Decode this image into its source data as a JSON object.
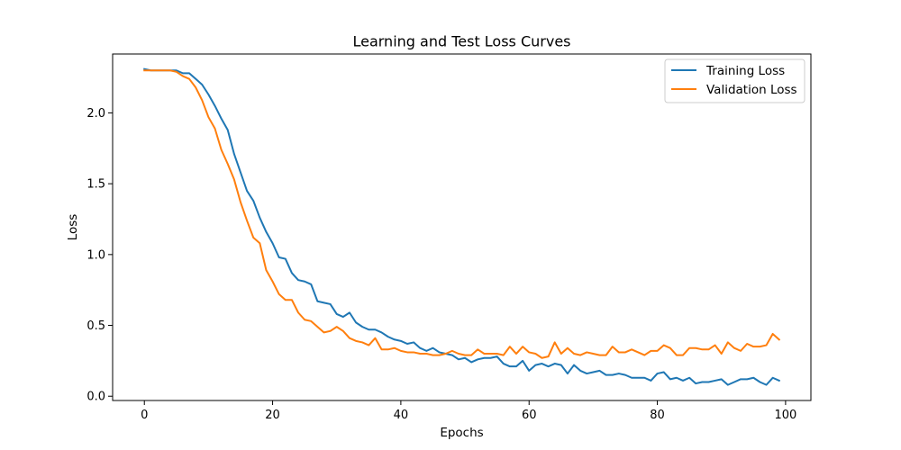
{
  "chart_data": {
    "type": "line",
    "title": "Learning and Test Loss Curves",
    "xlabel": "Epochs",
    "ylabel": "Loss",
    "xlim": [
      -4.95,
      103.95
    ],
    "ylim": [
      -0.0303,
      2.4159
    ],
    "xticks": [
      0,
      20,
      40,
      60,
      80,
      100
    ],
    "xtick_labels": [
      "0",
      "20",
      "40",
      "60",
      "80",
      "100"
    ],
    "yticks": [
      0.0,
      0.5,
      1.0,
      1.5,
      2.0
    ],
    "ytick_labels": [
      "0.0",
      "0.5",
      "1.0",
      "1.5",
      "2.0"
    ],
    "grid": false,
    "legend_position": "top-right",
    "x": [
      0,
      1,
      2,
      3,
      4,
      5,
      6,
      7,
      8,
      9,
      10,
      11,
      12,
      13,
      14,
      15,
      16,
      17,
      18,
      19,
      20,
      21,
      22,
      23,
      24,
      25,
      26,
      27,
      28,
      29,
      30,
      31,
      32,
      33,
      34,
      35,
      36,
      37,
      38,
      39,
      40,
      41,
      42,
      43,
      44,
      45,
      46,
      47,
      48,
      49,
      50,
      51,
      52,
      53,
      54,
      55,
      56,
      57,
      58,
      59,
      60,
      61,
      62,
      63,
      64,
      65,
      66,
      67,
      68,
      69,
      70,
      71,
      72,
      73,
      74,
      75,
      76,
      77,
      78,
      79,
      80,
      81,
      82,
      83,
      84,
      85,
      86,
      87,
      88,
      89,
      90,
      91,
      92,
      93,
      94,
      95,
      96,
      97,
      98,
      99
    ],
    "series": [
      {
        "name": "Training Loss",
        "color": "#1f77b4",
        "values": [
          2.31,
          2.3,
          2.3,
          2.3,
          2.3,
          2.3,
          2.28,
          2.28,
          2.24,
          2.2,
          2.13,
          2.05,
          1.96,
          1.88,
          1.71,
          1.58,
          1.45,
          1.38,
          1.26,
          1.16,
          1.08,
          0.98,
          0.97,
          0.87,
          0.82,
          0.81,
          0.79,
          0.67,
          0.66,
          0.65,
          0.58,
          0.56,
          0.59,
          0.52,
          0.49,
          0.47,
          0.47,
          0.45,
          0.42,
          0.4,
          0.39,
          0.37,
          0.38,
          0.34,
          0.32,
          0.34,
          0.31,
          0.3,
          0.29,
          0.26,
          0.27,
          0.24,
          0.26,
          0.27,
          0.27,
          0.28,
          0.23,
          0.21,
          0.21,
          0.25,
          0.18,
          0.22,
          0.23,
          0.21,
          0.23,
          0.22,
          0.16,
          0.22,
          0.18,
          0.16,
          0.17,
          0.18,
          0.15,
          0.15,
          0.16,
          0.15,
          0.13,
          0.13,
          0.13,
          0.11,
          0.16,
          0.17,
          0.12,
          0.13,
          0.11,
          0.13,
          0.09,
          0.1,
          0.1,
          0.11,
          0.12,
          0.08,
          0.1,
          0.12,
          0.12,
          0.13,
          0.1,
          0.08,
          0.13,
          0.11
        ]
      },
      {
        "name": "Validation Loss",
        "color": "#ff7f0e",
        "values": [
          2.3,
          2.3,
          2.3,
          2.3,
          2.3,
          2.29,
          2.26,
          2.24,
          2.18,
          2.09,
          1.97,
          1.89,
          1.74,
          1.64,
          1.53,
          1.37,
          1.24,
          1.12,
          1.08,
          0.89,
          0.81,
          0.72,
          0.68,
          0.68,
          0.59,
          0.54,
          0.53,
          0.49,
          0.45,
          0.46,
          0.49,
          0.46,
          0.41,
          0.39,
          0.38,
          0.36,
          0.41,
          0.33,
          0.33,
          0.34,
          0.32,
          0.31,
          0.31,
          0.3,
          0.3,
          0.29,
          0.29,
          0.3,
          0.32,
          0.3,
          0.29,
          0.29,
          0.33,
          0.3,
          0.3,
          0.3,
          0.29,
          0.35,
          0.3,
          0.35,
          0.31,
          0.3,
          0.27,
          0.28,
          0.38,
          0.3,
          0.34,
          0.3,
          0.29,
          0.31,
          0.3,
          0.29,
          0.29,
          0.35,
          0.31,
          0.31,
          0.33,
          0.31,
          0.29,
          0.32,
          0.32,
          0.36,
          0.34,
          0.29,
          0.29,
          0.34,
          0.34,
          0.33,
          0.33,
          0.36,
          0.3,
          0.38,
          0.34,
          0.32,
          0.37,
          0.35,
          0.35,
          0.36,
          0.44,
          0.4
        ]
      }
    ]
  }
}
